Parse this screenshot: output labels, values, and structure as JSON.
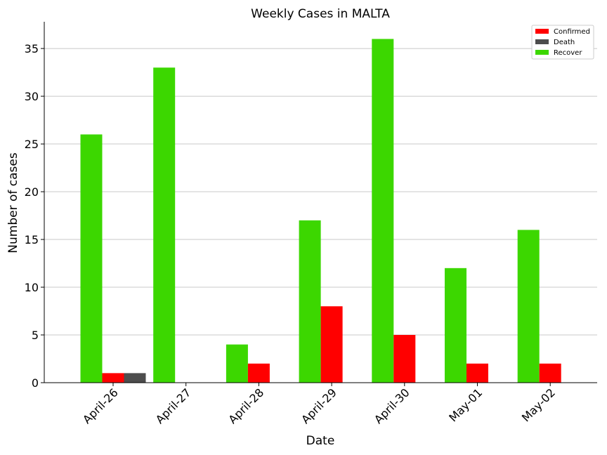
{
  "chart_data": {
    "type": "bar",
    "title": "Weekly Cases in MALTA",
    "xlabel": "Date",
    "ylabel": "Number of cases",
    "categories": [
      "April-26",
      "April-27",
      "April-28",
      "April-29",
      "April-30",
      "May-01",
      "May-02"
    ],
    "series": [
      {
        "name": "Recover",
        "color": "#3cd700",
        "values": [
          26,
          33,
          4,
          17,
          36,
          12,
          16
        ]
      },
      {
        "name": "Confirmed",
        "color": "#ff0000",
        "values": [
          1,
          0,
          2,
          8,
          5,
          2,
          2
        ]
      },
      {
        "name": "Death",
        "color": "#4d4d4d",
        "values": [
          1,
          0,
          0,
          0,
          0,
          0,
          0
        ]
      }
    ],
    "legend_order": [
      "Confirmed",
      "Death",
      "Recover"
    ],
    "legend_position": "top-right",
    "ylim": [
      0,
      37.8
    ],
    "yticks": [
      0,
      5,
      10,
      15,
      20,
      25,
      30,
      35
    ],
    "grid": "horizontal"
  }
}
